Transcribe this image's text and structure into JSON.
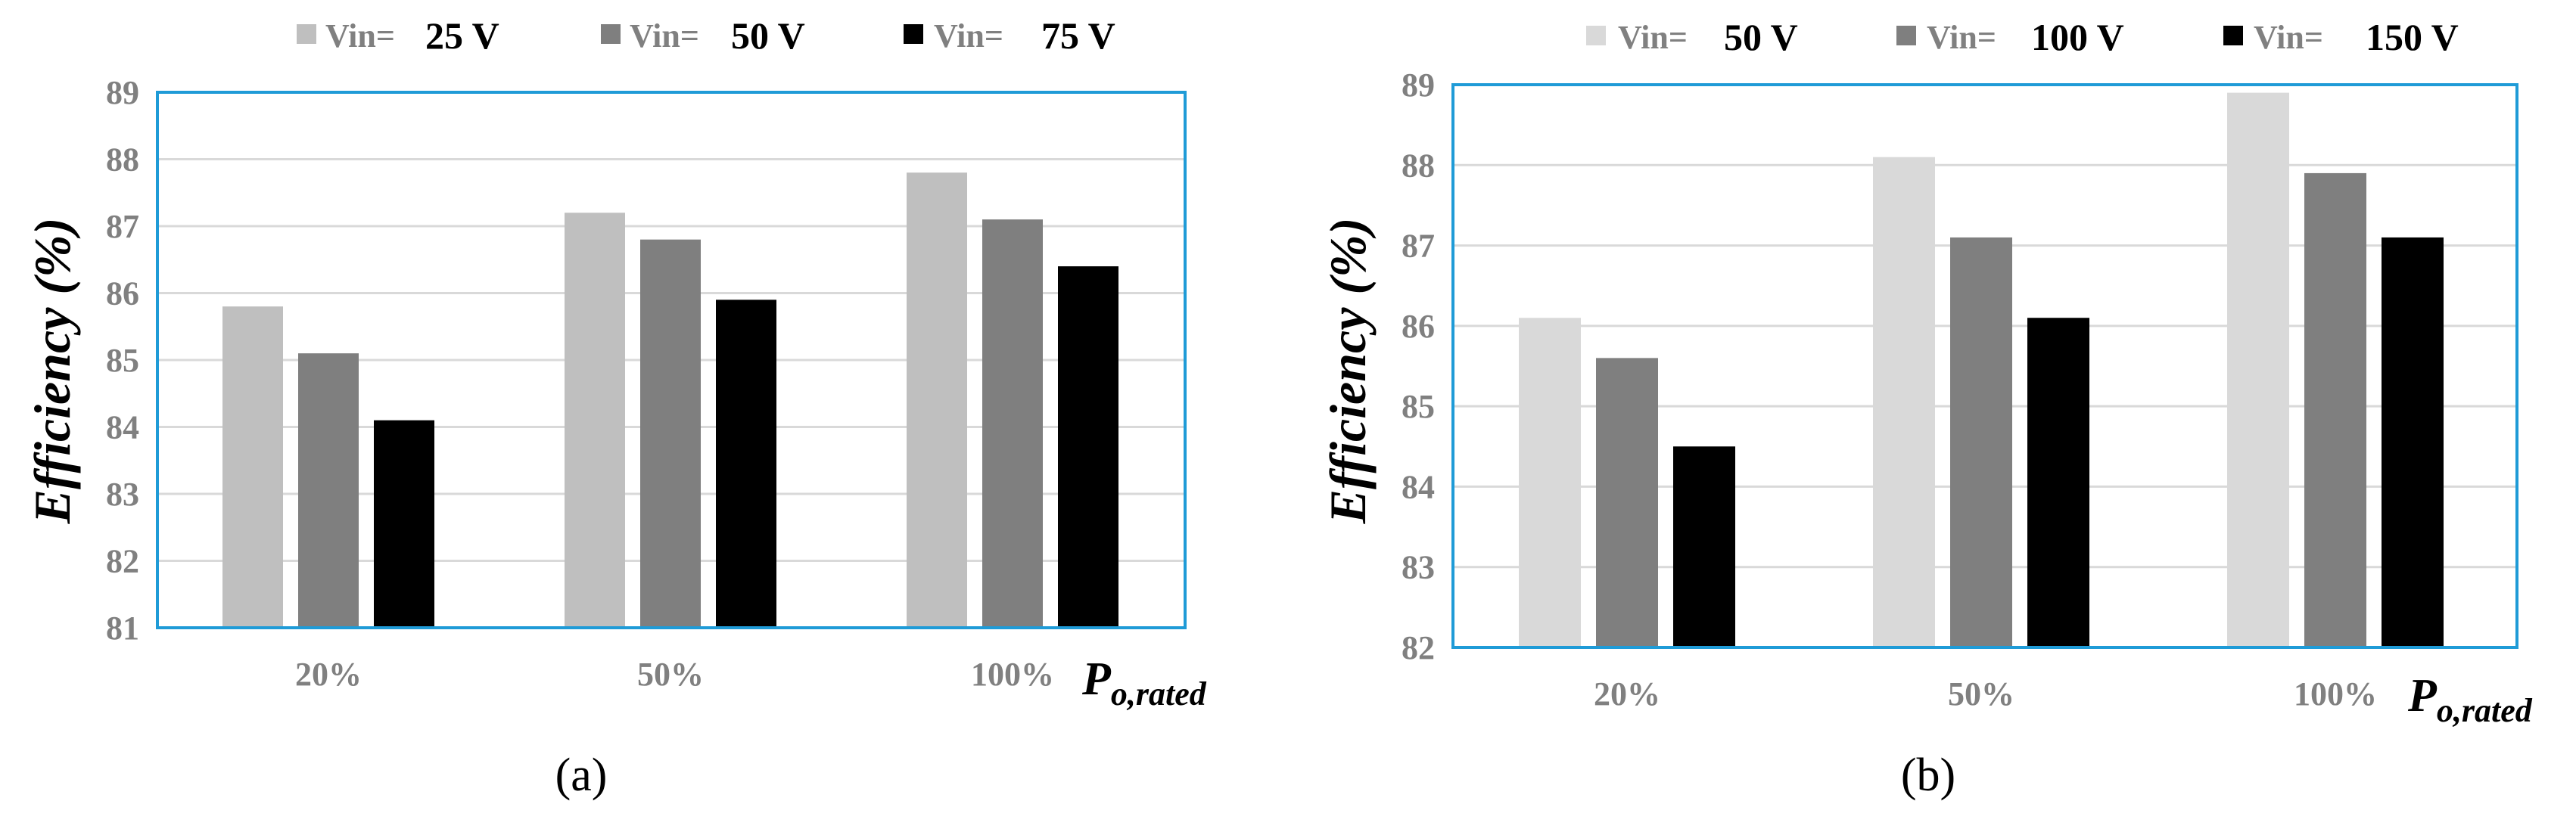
{
  "chart_data": [
    {
      "type": "bar",
      "panel_label": "(a)",
      "categories": [
        "20%",
        "50%",
        "100%"
      ],
      "series": [
        {
          "name": "Vin= 25 V",
          "legend_prefix": "Vin=",
          "legend_value": "25 V",
          "color": "#bfbfbf",
          "values": [
            85.8,
            87.2,
            87.8
          ]
        },
        {
          "name": "Vin= 50 V",
          "legend_prefix": "Vin=",
          "legend_value": "50 V",
          "color": "#7f7f7f",
          "values": [
            85.1,
            86.8,
            87.1
          ]
        },
        {
          "name": "Vin= 75 V",
          "legend_prefix": "Vin=",
          "legend_value": "75 V",
          "color": "#000000",
          "values": [
            84.1,
            85.9,
            86.4
          ]
        }
      ],
      "ylabel": "Efficiency (%)",
      "xlabel_main": "P",
      "xlabel_sub": "o,rated",
      "ylim": [
        81,
        89
      ],
      "yticks": [
        "81",
        "82",
        "83",
        "84",
        "85",
        "86",
        "87",
        "88",
        "89"
      ],
      "grid": true,
      "legend_position": "top"
    },
    {
      "type": "bar",
      "panel_label": "(b)",
      "categories": [
        "20%",
        "50%",
        "100%"
      ],
      "series": [
        {
          "name": "Vin= 50 V",
          "legend_prefix": "Vin=",
          "legend_value": "50 V",
          "color": "#d9d9d9",
          "values": [
            86.1,
            88.1,
            88.9
          ]
        },
        {
          "name": "Vin= 100 V",
          "legend_prefix": "Vin=",
          "legend_value": "100 V",
          "color": "#7f7f7f",
          "values": [
            85.6,
            87.1,
            87.9
          ]
        },
        {
          "name": "Vin= 150 V",
          "legend_prefix": "Vin=",
          "legend_value": "150 V",
          "color": "#000000",
          "values": [
            84.5,
            86.1,
            87.1
          ]
        }
      ],
      "ylabel": "Efficiency (%)",
      "xlabel_main": "P",
      "xlabel_sub": "o,rated",
      "ylim": [
        82,
        89
      ],
      "yticks": [
        "82",
        "83",
        "84",
        "85",
        "86",
        "87",
        "88",
        "89"
      ],
      "grid": true,
      "legend_position": "top"
    }
  ],
  "colors": {
    "frame": "#1f9bd7",
    "grid": "#d9d9d9",
    "tick_text": "#808080"
  }
}
